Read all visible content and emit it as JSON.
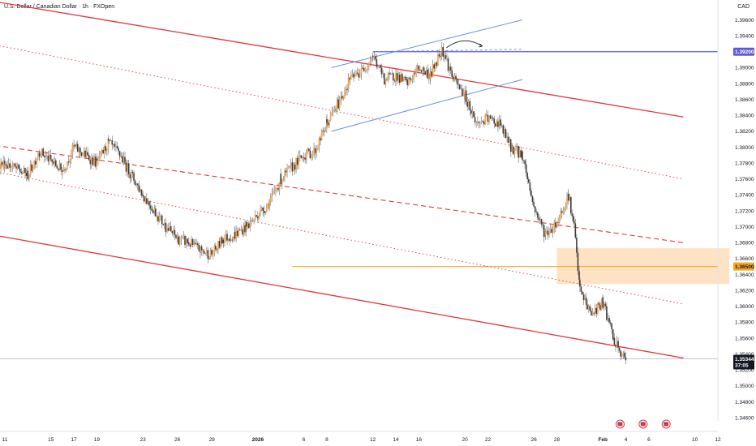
{
  "header": {
    "title": "U.S. Dollar / Canadian Dollar · 1h · FXOpen"
  },
  "currency": "CAD",
  "colors": {
    "candle": "#f5a04a",
    "channel": "#e3343b",
    "accent": "#5b5bd6",
    "support": "#f5a623",
    "zone": "#fde0bd",
    "blue": "#6b8fe0"
  },
  "price_tags": {
    "resistance": "1.39200",
    "support": "1.36500",
    "last": "1.35344",
    "countdown": "37:05"
  },
  "events": [
    "us-flag-icon",
    "us-flag-icon",
    "us-flag-icon"
  ],
  "chart_data": {
    "type": "candlestick",
    "y_axis": {
      "ylim": [
        1.3455,
        1.3985
      ],
      "ticks": [
        "1.34600",
        "1.34800",
        "1.35000",
        "1.35200",
        "1.35400",
        "1.35600",
        "1.35800",
        "1.36000",
        "1.36200",
        "1.36400",
        "1.36600",
        "1.36800",
        "1.37000",
        "1.37200",
        "1.37400",
        "1.37600",
        "1.37800",
        "1.38000",
        "1.38200",
        "1.38400",
        "1.38600",
        "1.38800",
        "1.39000",
        "1.39200",
        "1.39400",
        "1.39600"
      ]
    },
    "x_axis": {
      "labels": [
        "11",
        "15",
        "17",
        "19",
        "23",
        "26",
        "29",
        "2026",
        "6",
        "8",
        "12",
        "14",
        "16",
        "20",
        "22",
        "26",
        "28",
        "Feb",
        "4",
        "6",
        "10",
        "12"
      ],
      "label_days": [
        11,
        15,
        17,
        19,
        23,
        26,
        29,
        33,
        37,
        39,
        43,
        45,
        47,
        51,
        53,
        57,
        59,
        63,
        65,
        67,
        71,
        73
      ]
    },
    "series": [
      {
        "values": [
          [
            0,
            1.3868
          ],
          [
            2,
            1.379
          ],
          [
            3,
            1.381
          ],
          [
            5,
            1.376
          ],
          [
            7,
            1.3775
          ],
          [
            9,
            1.377
          ],
          [
            11,
            1.378
          ],
          [
            13,
            1.3765
          ],
          [
            14,
            1.3795
          ],
          [
            16,
            1.377
          ],
          [
            17,
            1.38
          ],
          [
            19,
            1.378
          ],
          [
            20,
            1.3805
          ],
          [
            21,
            1.379
          ],
          [
            22,
            1.3765
          ],
          [
            23,
            1.374
          ],
          [
            24,
            1.372
          ],
          [
            25,
            1.37
          ],
          [
            26,
            1.3685
          ],
          [
            27,
            1.368
          ],
          [
            28,
            1.367
          ],
          [
            29,
            1.3665
          ],
          [
            30,
            1.3685
          ],
          [
            31,
            1.369
          ],
          [
            32,
            1.37
          ],
          [
            33,
            1.3715
          ],
          [
            34,
            1.373
          ],
          [
            35,
            1.376
          ],
          [
            36,
            1.3775
          ],
          [
            37,
            1.379
          ],
          [
            38,
            1.3795
          ],
          [
            39,
            1.383
          ],
          [
            40,
            1.3855
          ],
          [
            41,
            1.3885
          ],
          [
            42,
            1.3895
          ],
          [
            43,
            1.3915
          ],
          [
            44,
            1.3885
          ],
          [
            45,
            1.389
          ],
          [
            46,
            1.388
          ],
          [
            47,
            1.39
          ],
          [
            48,
            1.389
          ],
          [
            49,
            1.3925
          ],
          [
            50,
            1.3885
          ],
          [
            51,
            1.3865
          ],
          [
            52,
            1.383
          ],
          [
            53,
            1.3835
          ],
          [
            54,
            1.383
          ],
          [
            55,
            1.38
          ],
          [
            56,
            1.379
          ],
          [
            57,
            1.3725
          ],
          [
            58,
            1.369
          ],
          [
            59,
            1.3705
          ],
          [
            60,
            1.374
          ],
          [
            60.5,
            1.37
          ],
          [
            61,
            1.362
          ],
          [
            62,
            1.359
          ],
          [
            63,
            1.3605
          ],
          [
            64,
            1.3555
          ],
          [
            65,
            1.353
          ]
        ]
      }
    ],
    "levels": {
      "resistance": 1.392,
      "support": 1.365
    },
    "demand_zone": {
      "y_range": [
        1.3628,
        1.3673
      ],
      "x_range": [
        59,
        74
      ]
    },
    "annotations": {
      "channel_upper": [
        [
          -1,
          1.401
        ],
        [
          70,
          1.3838
        ]
      ],
      "channel_mid": [
        [
          -1,
          1.3825
        ],
        [
          70,
          1.368
        ]
      ],
      "channel_lower": [
        [
          -1,
          1.3718
        ],
        [
          70,
          1.3535
        ]
      ],
      "channel_dotted_top": [
        [
          -1,
          1.396
        ],
        [
          70,
          1.376
        ]
      ],
      "channel_dotted_low": [
        [
          -1,
          1.38
        ],
        [
          70,
          1.3603
        ]
      ],
      "blue_upper": [
        [
          39.4,
          1.39
        ],
        [
          56,
          1.396
        ]
      ],
      "blue_lower": [
        [
          39.4,
          1.382
        ],
        [
          56,
          1.3885
        ]
      ],
      "blue_dashed": [
        [
          43,
          1.392
        ],
        [
          56,
          1.3923
        ]
      ],
      "arc": [
        [
          49.4,
          1.3925
        ],
        [
          52.5,
          1.3927
        ]
      ]
    }
  }
}
